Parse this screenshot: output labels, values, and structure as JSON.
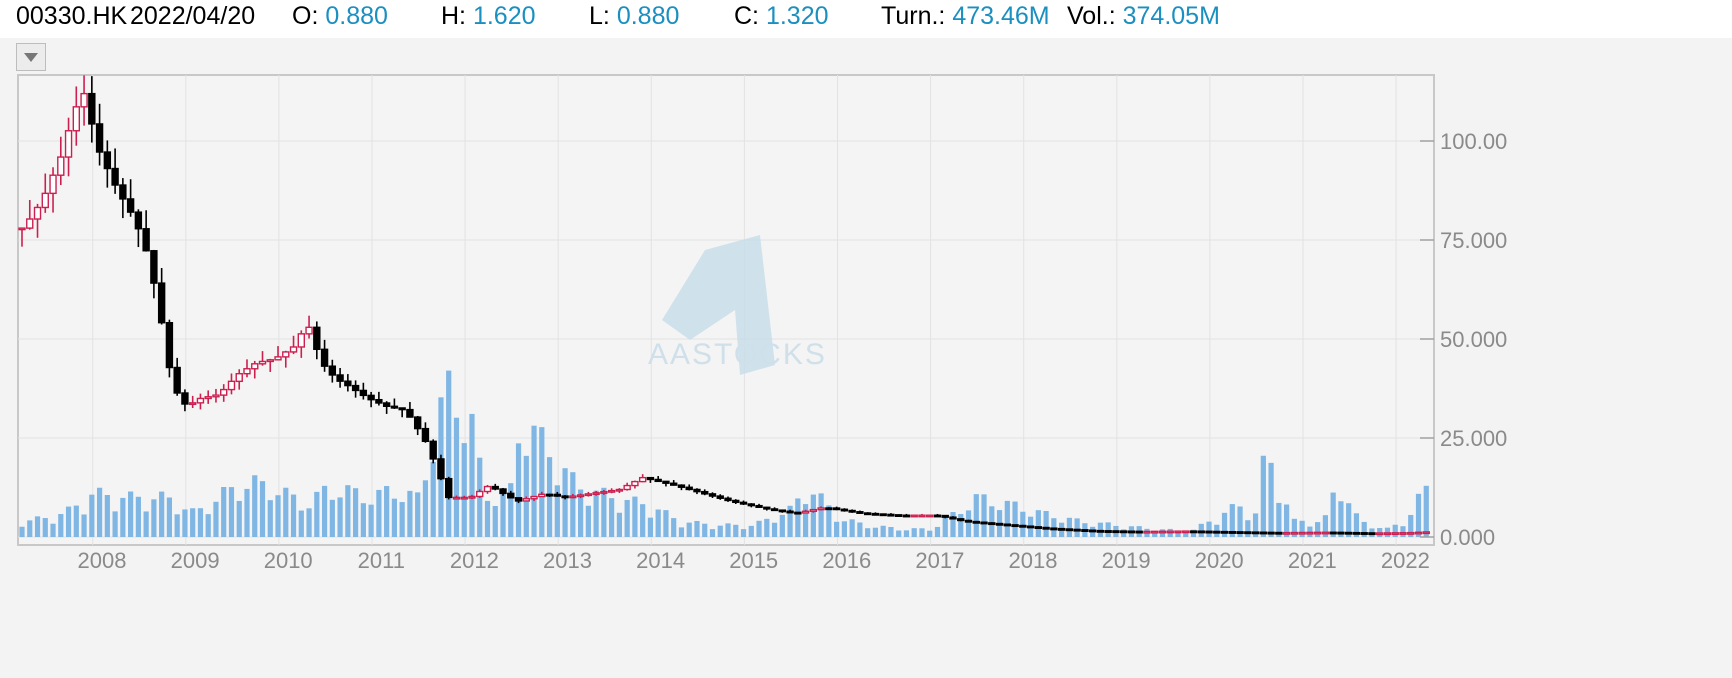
{
  "quote": {
    "symbol": "00330.HK",
    "date": "2022/04/20",
    "open_label": "O:",
    "open": "0.880",
    "high_label": "H:",
    "high": "1.620",
    "low_label": "L:",
    "low": "0.880",
    "close_label": "C:",
    "close": "1.320",
    "turnover_label": "Turn.:",
    "turnover": "473.46M",
    "volume_label": "Vol.:",
    "volume": "374.05M"
  },
  "menu": {
    "icon": "triangle-down-icon"
  },
  "watermark": "AASTOCKS",
  "colors": {
    "up": "#cc1f4f",
    "down": "#000000",
    "volume": "#7fb6e3",
    "value_text": "#1a8fc0"
  },
  "chart_data": {
    "type": "candlestick",
    "interval": "monthly",
    "y_ticks": [
      "0.000",
      "25.000",
      "50.000",
      "75.000",
      "100.00"
    ],
    "ylim": [
      0,
      112
    ],
    "x_ticks": [
      "2008",
      "2009",
      "2010",
      "2011",
      "2012",
      "2013",
      "2014",
      "2015",
      "2016",
      "2017",
      "2018",
      "2019",
      "2020",
      "2021",
      "2022"
    ],
    "series": [
      {
        "name": "price_close",
        "points": [
          [
            2007.2,
            78
          ],
          [
            2007.4,
            85
          ],
          [
            2007.6,
            96
          ],
          [
            2007.75,
            108
          ],
          [
            2007.85,
            112
          ],
          [
            2008.0,
            98
          ],
          [
            2008.2,
            88
          ],
          [
            2008.4,
            80
          ],
          [
            2008.55,
            70
          ],
          [
            2008.7,
            52
          ],
          [
            2008.8,
            38
          ],
          [
            2008.95,
            33
          ],
          [
            2009.1,
            35
          ],
          [
            2009.3,
            36
          ],
          [
            2009.5,
            41
          ],
          [
            2009.7,
            44
          ],
          [
            2009.9,
            45
          ],
          [
            2010.1,
            48
          ],
          [
            2010.25,
            54
          ],
          [
            2010.4,
            44
          ],
          [
            2010.55,
            40
          ],
          [
            2010.7,
            38
          ],
          [
            2010.9,
            35
          ],
          [
            2011.1,
            33
          ],
          [
            2011.3,
            32
          ],
          [
            2011.5,
            25
          ],
          [
            2011.65,
            17
          ],
          [
            2011.75,
            10
          ],
          [
            2012.0,
            10
          ],
          [
            2012.2,
            13
          ],
          [
            2012.5,
            9
          ],
          [
            2012.8,
            11
          ],
          [
            2013.0,
            10
          ],
          [
            2013.3,
            11
          ],
          [
            2013.6,
            12
          ],
          [
            2013.85,
            15
          ],
          [
            2014.2,
            13
          ],
          [
            2014.5,
            11
          ],
          [
            2014.8,
            9
          ],
          [
            2015.2,
            7
          ],
          [
            2015.5,
            6
          ],
          [
            2015.8,
            7.5
          ],
          [
            2016.2,
            6
          ],
          [
            2016.6,
            5.5
          ],
          [
            2017.0,
            5.5
          ],
          [
            2017.3,
            4
          ],
          [
            2017.8,
            3
          ],
          [
            2018.2,
            2.2
          ],
          [
            2018.7,
            1.6
          ],
          [
            2019.2,
            1.4
          ],
          [
            2019.7,
            1.5
          ],
          [
            2020.2,
            1.3
          ],
          [
            2020.7,
            1.1
          ],
          [
            2021.2,
            1.2
          ],
          [
            2021.7,
            1.0
          ],
          [
            2022.1,
            1.1
          ],
          [
            2022.3,
            1.32
          ]
        ]
      },
      {
        "name": "volume",
        "points": [
          [
            2007.2,
            4
          ],
          [
            2007.6,
            6
          ],
          [
            2007.9,
            11
          ],
          [
            2008.3,
            10
          ],
          [
            2008.7,
            10
          ],
          [
            2009.0,
            6
          ],
          [
            2009.3,
            11
          ],
          [
            2009.6,
            14
          ],
          [
            2009.9,
            12
          ],
          [
            2010.2,
            8
          ],
          [
            2010.4,
            12
          ],
          [
            2010.6,
            12
          ],
          [
            2010.9,
            10
          ],
          [
            2011.1,
            12
          ],
          [
            2011.4,
            10
          ],
          [
            2011.7,
            38
          ],
          [
            2011.8,
            35
          ],
          [
            2012.0,
            28
          ],
          [
            2012.1,
            10
          ],
          [
            2012.4,
            12
          ],
          [
            2012.5,
            31
          ],
          [
            2012.8,
            22
          ],
          [
            2013.1,
            13
          ],
          [
            2013.5,
            10
          ],
          [
            2013.9,
            8
          ],
          [
            2014.2,
            4
          ],
          [
            2014.6,
            3
          ],
          [
            2015.0,
            3
          ],
          [
            2015.4,
            7
          ],
          [
            2015.6,
            13
          ],
          [
            2015.9,
            5
          ],
          [
            2016.2,
            3
          ],
          [
            2016.6,
            2
          ],
          [
            2016.9,
            2
          ],
          [
            2017.1,
            5
          ],
          [
            2017.4,
            10
          ],
          [
            2017.8,
            8
          ],
          [
            2018.1,
            6
          ],
          [
            2018.5,
            4
          ],
          [
            2018.9,
            3
          ],
          [
            2019.3,
            2
          ],
          [
            2019.7,
            1.5
          ],
          [
            2020.2,
            8
          ],
          [
            2020.4,
            6
          ],
          [
            2020.5,
            22
          ],
          [
            2020.8,
            4
          ],
          [
            2021.1,
            4
          ],
          [
            2021.2,
            6
          ],
          [
            2021.25,
            16
          ],
          [
            2021.5,
            4
          ],
          [
            2021.8,
            2
          ],
          [
            2022.0,
            4
          ],
          [
            2022.2,
            12
          ]
        ]
      }
    ]
  }
}
